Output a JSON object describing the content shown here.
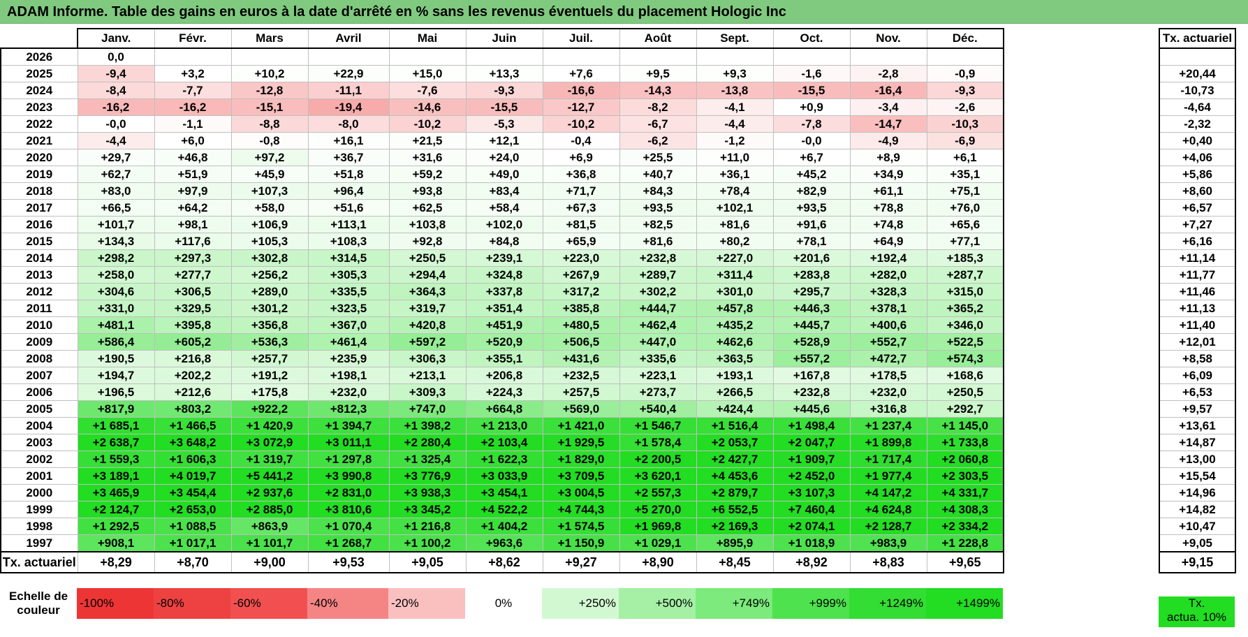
{
  "title": "ADAM Informe. Table des gains en euros à la date d'arrêté en % sans les revenus éventuels du placement Hologic Inc",
  "months": [
    "Janv.",
    "Févr.",
    "Mars",
    "Avril",
    "Mai",
    "Juin",
    "Juil.",
    "Août",
    "Sept.",
    "Oct.",
    "Nov.",
    "Déc."
  ],
  "side_header": "Tx. actuariel",
  "rows": [
    {
      "year": "2026",
      "values": [
        "0,0",
        "",
        "",
        "",
        "",
        "",
        "",
        "",
        "",
        "",
        "",
        ""
      ],
      "rate": ""
    },
    {
      "year": "2025",
      "values": [
        "-9,4",
        "+3,2",
        "+10,2",
        "+22,9",
        "+15,0",
        "+13,3",
        "+7,6",
        "+9,5",
        "+9,3",
        "-1,6",
        "-2,8",
        "-0,9"
      ],
      "rate": "+20,44"
    },
    {
      "year": "2024",
      "values": [
        "-8,4",
        "-7,7",
        "-12,8",
        "-11,1",
        "-7,6",
        "-9,3",
        "-16,6",
        "-14,3",
        "-13,8",
        "-15,5",
        "-16,4",
        "-9,3"
      ],
      "rate": "-10,73"
    },
    {
      "year": "2023",
      "values": [
        "-16,2",
        "-16,2",
        "-15,1",
        "-19,4",
        "-14,6",
        "-15,5",
        "-12,7",
        "-8,2",
        "-4,1",
        "+0,9",
        "-3,4",
        "-2,6"
      ],
      "rate": "-4,64"
    },
    {
      "year": "2022",
      "values": [
        "-0,0",
        "-1,1",
        "-8,8",
        "-8,0",
        "-10,2",
        "-5,3",
        "-10,2",
        "-6,7",
        "-4,4",
        "-7,8",
        "-14,7",
        "-10,3"
      ],
      "rate": "-2,32"
    },
    {
      "year": "2021",
      "values": [
        "-4,4",
        "+6,0",
        "-0,8",
        "+16,1",
        "+21,5",
        "+12,1",
        "-0,4",
        "-6,2",
        "-1,2",
        "-0,0",
        "-4,9",
        "-6,9"
      ],
      "rate": "+0,40"
    },
    {
      "year": "2020",
      "values": [
        "+29,7",
        "+46,8",
        "+97,2",
        "+36,7",
        "+31,6",
        "+24,0",
        "+6,9",
        "+25,5",
        "+11,0",
        "+6,7",
        "+8,9",
        "+6,1"
      ],
      "rate": "+4,06"
    },
    {
      "year": "2019",
      "values": [
        "+62,7",
        "+51,9",
        "+45,9",
        "+51,8",
        "+59,2",
        "+49,0",
        "+36,8",
        "+40,7",
        "+36,1",
        "+45,2",
        "+34,9",
        "+35,1"
      ],
      "rate": "+5,86"
    },
    {
      "year": "2018",
      "values": [
        "+83,0",
        "+97,9",
        "+107,3",
        "+96,4",
        "+93,8",
        "+83,4",
        "+71,7",
        "+84,3",
        "+78,4",
        "+82,9",
        "+61,1",
        "+75,1"
      ],
      "rate": "+8,60"
    },
    {
      "year": "2017",
      "values": [
        "+66,5",
        "+64,2",
        "+58,0",
        "+51,6",
        "+62,5",
        "+58,4",
        "+67,3",
        "+93,5",
        "+102,1",
        "+93,5",
        "+78,8",
        "+76,0"
      ],
      "rate": "+6,57"
    },
    {
      "year": "2016",
      "values": [
        "+101,7",
        "+98,1",
        "+106,9",
        "+113,1",
        "+103,8",
        "+102,0",
        "+81,5",
        "+82,5",
        "+81,6",
        "+91,6",
        "+74,8",
        "+65,6"
      ],
      "rate": "+7,27"
    },
    {
      "year": "2015",
      "values": [
        "+134,3",
        "+117,6",
        "+105,3",
        "+108,3",
        "+92,8",
        "+84,8",
        "+65,9",
        "+81,6",
        "+80,2",
        "+78,1",
        "+64,9",
        "+77,1"
      ],
      "rate": "+6,16"
    },
    {
      "year": "2014",
      "values": [
        "+298,2",
        "+297,3",
        "+302,8",
        "+314,5",
        "+250,5",
        "+239,1",
        "+223,0",
        "+232,8",
        "+227,0",
        "+201,6",
        "+192,4",
        "+185,3"
      ],
      "rate": "+11,14"
    },
    {
      "year": "2013",
      "values": [
        "+258,0",
        "+277,7",
        "+256,2",
        "+305,3",
        "+294,4",
        "+324,8",
        "+267,9",
        "+289,7",
        "+311,4",
        "+283,8",
        "+282,0",
        "+287,7"
      ],
      "rate": "+11,77"
    },
    {
      "year": "2012",
      "values": [
        "+304,6",
        "+306,5",
        "+289,0",
        "+335,5",
        "+364,3",
        "+337,8",
        "+317,2",
        "+302,2",
        "+301,0",
        "+295,7",
        "+328,3",
        "+315,0"
      ],
      "rate": "+11,46"
    },
    {
      "year": "2011",
      "values": [
        "+331,0",
        "+329,5",
        "+301,2",
        "+323,5",
        "+319,7",
        "+351,4",
        "+385,8",
        "+444,7",
        "+457,8",
        "+446,3",
        "+378,1",
        "+365,2"
      ],
      "rate": "+11,13"
    },
    {
      "year": "2010",
      "values": [
        "+481,1",
        "+395,8",
        "+356,8",
        "+367,0",
        "+420,8",
        "+451,9",
        "+480,5",
        "+462,4",
        "+435,2",
        "+445,7",
        "+400,6",
        "+346,0"
      ],
      "rate": "+11,40"
    },
    {
      "year": "2009",
      "values": [
        "+586,4",
        "+605,2",
        "+536,3",
        "+461,4",
        "+597,2",
        "+520,9",
        "+506,5",
        "+447,0",
        "+462,6",
        "+528,9",
        "+552,7",
        "+522,5"
      ],
      "rate": "+12,01"
    },
    {
      "year": "2008",
      "values": [
        "+190,5",
        "+216,8",
        "+257,7",
        "+235,9",
        "+306,3",
        "+355,1",
        "+431,6",
        "+335,6",
        "+363,5",
        "+557,2",
        "+472,7",
        "+574,3"
      ],
      "rate": "+8,58"
    },
    {
      "year": "2007",
      "values": [
        "+194,7",
        "+202,2",
        "+191,2",
        "+198,1",
        "+213,1",
        "+206,8",
        "+232,5",
        "+223,1",
        "+193,1",
        "+167,8",
        "+178,5",
        "+168,6"
      ],
      "rate": "+6,09"
    },
    {
      "year": "2006",
      "values": [
        "+196,5",
        "+212,6",
        "+175,8",
        "+232,0",
        "+309,3",
        "+224,3",
        "+257,5",
        "+273,7",
        "+266,5",
        "+232,8",
        "+232,0",
        "+250,5"
      ],
      "rate": "+6,53"
    },
    {
      "year": "2005",
      "values": [
        "+817,9",
        "+803,2",
        "+922,2",
        "+812,3",
        "+747,0",
        "+664,8",
        "+569,0",
        "+540,4",
        "+424,4",
        "+445,6",
        "+316,8",
        "+292,7"
      ],
      "rate": "+9,57"
    },
    {
      "year": "2004",
      "values": [
        "+1 685,1",
        "+1 466,5",
        "+1 420,9",
        "+1 394,7",
        "+1 398,2",
        "+1 213,0",
        "+1 421,0",
        "+1 546,7",
        "+1 516,4",
        "+1 498,4",
        "+1 237,4",
        "+1 145,0"
      ],
      "rate": "+13,61"
    },
    {
      "year": "2003",
      "values": [
        "+2 638,7",
        "+3 648,2",
        "+3 072,9",
        "+3 011,1",
        "+2 280,4",
        "+2 103,4",
        "+1 929,5",
        "+1 578,4",
        "+2 053,7",
        "+2 047,7",
        "+1 899,8",
        "+1 733,8"
      ],
      "rate": "+14,87"
    },
    {
      "year": "2002",
      "values": [
        "+1 559,3",
        "+1 606,3",
        "+1 319,7",
        "+1 297,8",
        "+1 325,4",
        "+1 622,3",
        "+1 829,0",
        "+2 200,5",
        "+2 427,7",
        "+1 909,7",
        "+1 717,4",
        "+2 060,8"
      ],
      "rate": "+13,00"
    },
    {
      "year": "2001",
      "values": [
        "+3 189,1",
        "+4 019,7",
        "+5 441,2",
        "+3 990,8",
        "+3 776,9",
        "+3 033,9",
        "+3 709,5",
        "+3 620,1",
        "+4 453,6",
        "+2 452,0",
        "+1 977,4",
        "+2 303,5"
      ],
      "rate": "+15,54"
    },
    {
      "year": "2000",
      "values": [
        "+3 465,9",
        "+3 454,4",
        "+2 937,6",
        "+2 831,0",
        "+3 938,3",
        "+3 454,1",
        "+3 004,5",
        "+2 557,3",
        "+2 879,7",
        "+3 107,3",
        "+4 147,2",
        "+4 331,7"
      ],
      "rate": "+14,96"
    },
    {
      "year": "1999",
      "values": [
        "+2 124,7",
        "+2 653,0",
        "+2 885,0",
        "+3 810,6",
        "+3 345,2",
        "+4 522,2",
        "+4 744,3",
        "+5 270,0",
        "+6 552,5",
        "+7 460,4",
        "+4 624,8",
        "+4 308,3"
      ],
      "rate": "+14,82"
    },
    {
      "year": "1998",
      "values": [
        "+1 292,5",
        "+1 088,5",
        "+863,9",
        "+1 070,4",
        "+1 216,8",
        "+1 404,2",
        "+1 574,5",
        "+1 969,8",
        "+2 169,3",
        "+2 074,1",
        "+2 128,7",
        "+2 334,2"
      ],
      "rate": "+10,47"
    },
    {
      "year": "1997",
      "values": [
        "+908,1",
        "+1 017,1",
        "+1 101,7",
        "+1 268,7",
        "+1 100,2",
        "+963,6",
        "+1 150,9",
        "+1 029,1",
        "+895,9",
        "+1 018,9",
        "+983,9",
        "+1 228,8"
      ],
      "rate": "+9,05"
    }
  ],
  "footer": {
    "label": "Tx. actuariel",
    "values": [
      "+8,29",
      "+8,70",
      "+9,00",
      "+9,53",
      "+9,05",
      "+8,62",
      "+9,27",
      "+8,90",
      "+8,45",
      "+8,92",
      "+8,83",
      "+9,65"
    ],
    "rate": "+9,15"
  },
  "scale": {
    "label_line1": "Echelle de",
    "label_line2": "couleur",
    "items": [
      {
        "text": "-100%",
        "color": "#ee3535"
      },
      {
        "text": "-80%",
        "color": "#ee4242"
      },
      {
        "text": "-60%",
        "color": "#f25050"
      },
      {
        "text": "-40%",
        "color": "#f58585"
      },
      {
        "text": "-20%",
        "color": "#fac0c0"
      },
      {
        "text": "0%",
        "color": "#ffffff"
      },
      {
        "text": "+250%",
        "color": "#d2f8d2"
      },
      {
        "text": "+500%",
        "color": "#a5f0a5"
      },
      {
        "text": "+749%",
        "color": "#7cea7c"
      },
      {
        "text": "+999%",
        "color": "#4ee24e"
      },
      {
        "text": "+1249%",
        "color": "#33dd33"
      },
      {
        "text": "+1499%",
        "color": "#22dd22"
      }
    ],
    "side_line1": "Tx.",
    "side_line2": "actua. 10%",
    "side_color": "#22dd22"
  }
}
